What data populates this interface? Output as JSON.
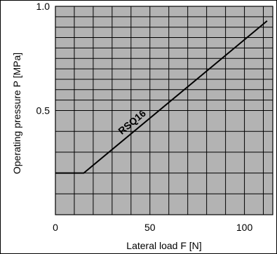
{
  "chart_data": {
    "type": "line",
    "title": "",
    "xlabel": "Lateral load F [N]",
    "ylabel": "Operating pressure P [MPa]",
    "xlim": [
      0,
      115
    ],
    "ylim": [
      0,
      1.0
    ],
    "x_ticks": [
      "0",
      "50",
      "100"
    ],
    "x_tick_values": [
      0,
      50,
      100
    ],
    "y_ticks": [
      "0.5",
      "1.0"
    ],
    "y_tick_values": [
      0.5,
      1.0
    ],
    "grid": true,
    "legend": "none",
    "colors": {
      "plot_background": "#b3b3b3",
      "grid": "#000000",
      "line": "#000000"
    },
    "series": [
      {
        "name": "RSQ16",
        "x": [
          0,
          15,
          112
        ],
        "y": [
          0.2,
          0.2,
          0.93
        ]
      }
    ]
  }
}
